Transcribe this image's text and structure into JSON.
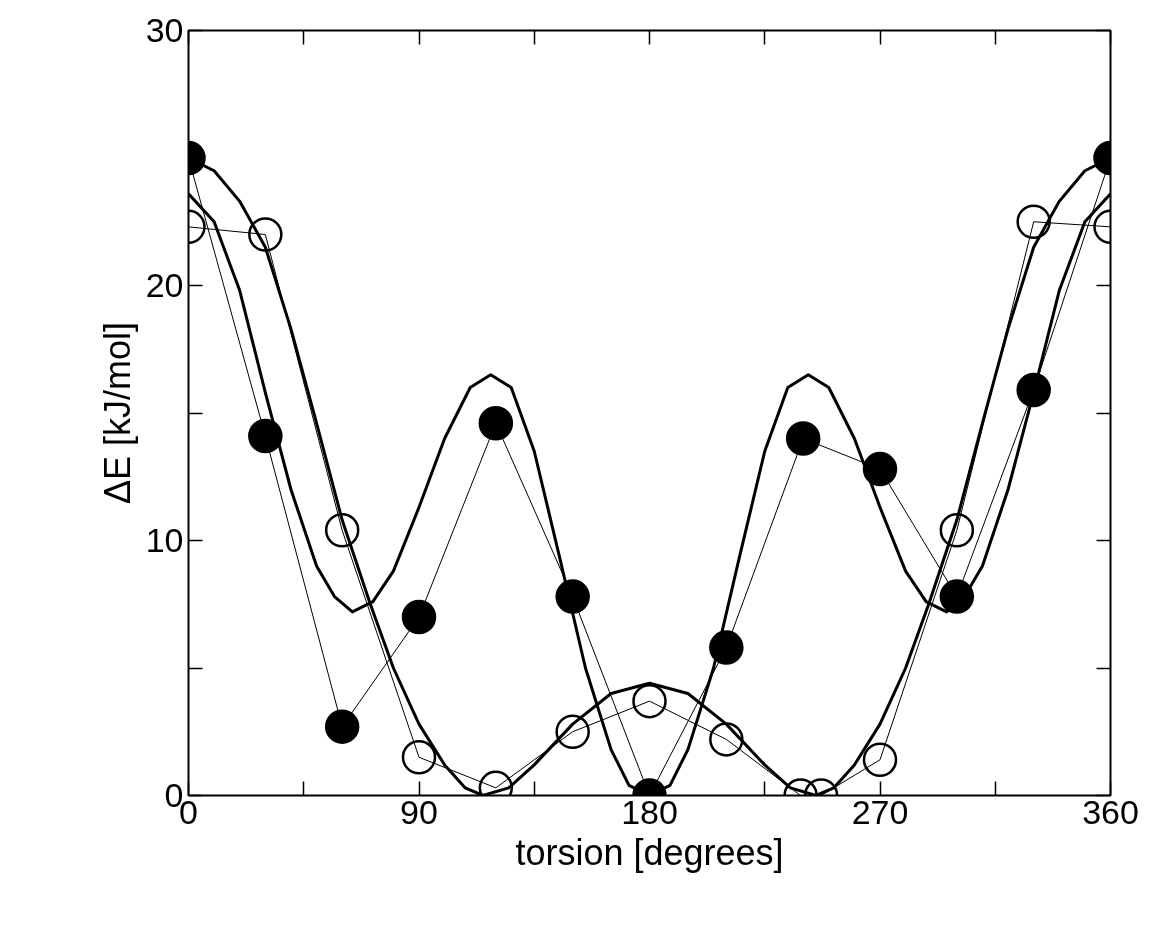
{
  "chart_data": {
    "type": "line",
    "xlabel": "torsion [degrees]",
    "ylabel": "ΔE [kJ/mol]",
    "xlim": [
      0,
      360
    ],
    "ylim": [
      0,
      30
    ],
    "xticks": [
      0,
      {
        "value": 45,
        "label": null
      },
      90,
      {
        "value": 135,
        "label": null
      },
      180,
      {
        "value": 225,
        "label": null
      },
      270,
      {
        "value": 315,
        "label": null
      },
      360
    ],
    "yticks": [
      0,
      {
        "value": 5,
        "label": null
      },
      10,
      {
        "value": 15,
        "label": null
      },
      20,
      {
        "value": 25,
        "label": null
      },
      30
    ],
    "grid": false,
    "line_style": "solid",
    "series": [
      {
        "color": "#000000",
        "marker": "none",
        "x": [
          0,
          10,
          20,
          30,
          40,
          50,
          57,
          64,
          72,
          80,
          90,
          100,
          110,
          118,
          126,
          135,
          145,
          155,
          165,
          172,
          180,
          188,
          195,
          205,
          215,
          225,
          234,
          242,
          250,
          260,
          270,
          280,
          288,
          296,
          303,
          310,
          320,
          330,
          340,
          350,
          360
        ],
        "values": [
          23.6,
          22.5,
          19.8,
          15.8,
          12.0,
          9.0,
          7.8,
          7.2,
          7.6,
          8.8,
          11.3,
          14.0,
          16.0,
          16.5,
          16.0,
          13.5,
          9.3,
          5.0,
          1.8,
          0.4,
          0,
          0.4,
          1.8,
          5.0,
          9.3,
          13.5,
          16.0,
          16.5,
          16.0,
          14.0,
          11.3,
          8.8,
          7.6,
          7.2,
          7.8,
          9.0,
          12.0,
          15.8,
          19.8,
          22.5,
          23.6
        ]
      },
      {
        "color": "#000000",
        "marker": "none",
        "x": [
          0,
          10,
          20,
          30,
          40,
          50,
          60,
          71,
          80,
          90,
          100,
          108,
          115,
          125,
          135,
          150,
          165,
          180,
          195,
          210,
          225,
          235,
          245,
          252,
          260,
          270,
          280,
          289,
          300,
          310,
          320,
          330,
          340,
          350,
          360
        ],
        "values": [
          25,
          24.5,
          23.3,
          21.5,
          18.3,
          14.6,
          10.8,
          7.5,
          5.0,
          2.8,
          1.2,
          0.3,
          0,
          0.3,
          1.2,
          2.8,
          4.0,
          4.4,
          4.0,
          2.8,
          1.2,
          0.3,
          0,
          0.3,
          1.2,
          2.8,
          5.0,
          7.5,
          10.8,
          14.6,
          18.3,
          21.5,
          23.3,
          24.5,
          25
        ]
      },
      {
        "color": "#000000",
        "marker": "circle",
        "x": [
          0,
          30,
          60,
          90,
          120,
          150,
          180,
          210,
          240,
          270,
          300,
          330,
          360
        ],
        "values": [
          25,
          14.1,
          2.7,
          7.0,
          14.6,
          7.8,
          0,
          5.8,
          14.0,
          12.8,
          7.8,
          15.9,
          25
        ]
      },
      {
        "color": "#000000",
        "marker": "circle_open",
        "x": [
          0,
          30,
          60,
          90,
          120,
          150,
          180,
          210,
          239,
          247,
          270,
          300,
          330,
          360
        ],
        "values": [
          22.3,
          22.0,
          10.4,
          1.5,
          0.3,
          2.5,
          3.7,
          2.2,
          0,
          0,
          1.4,
          10.4,
          22.5,
          22.3
        ]
      }
    ]
  }
}
